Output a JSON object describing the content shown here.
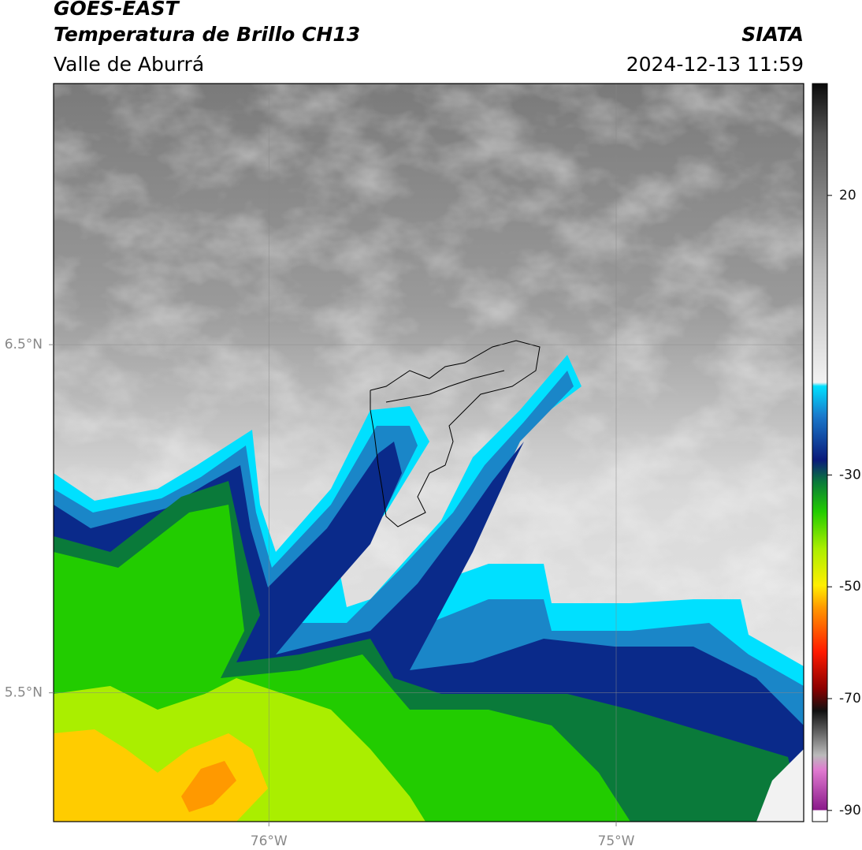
{
  "header": {
    "title": "GOES-EAST",
    "subtitle": "Temperatura de Brillo CH13",
    "region": "Valle de Aburrá",
    "source": "SIATA",
    "datetime": "2024-12-13 11:59"
  },
  "map": {
    "xlim": [
      -76.62,
      -74.46
    ],
    "ylim": [
      5.13,
      7.25
    ],
    "xticks": [
      {
        "value": -76,
        "label": "76°W"
      },
      {
        "value": -75,
        "label": "75°W"
      }
    ],
    "yticks": [
      {
        "value": 5.5,
        "label": "5.5°N"
      },
      {
        "value": 6.5,
        "label": "6.5°N"
      }
    ],
    "grid": true
  },
  "colorbar": {
    "ylim": [
      -92,
      40
    ],
    "yticks": [
      20,
      -30,
      -50,
      -70,
      -90
    ]
  }
}
